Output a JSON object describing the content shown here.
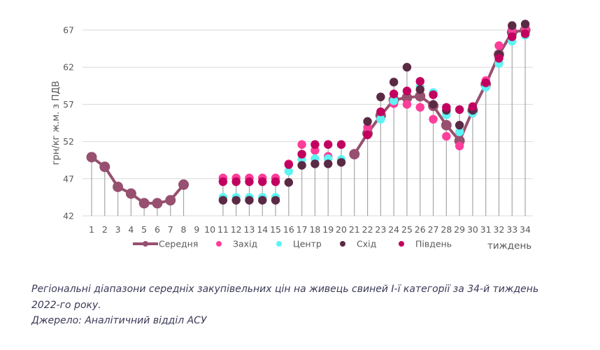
{
  "chart_data": {
    "type": "scatter",
    "title": "",
    "xlabel": "тиждень",
    "ylabel": "грн/кг ж.м. з ПДВ",
    "ylim": [
      42,
      67
    ],
    "yticks": [
      42,
      47,
      52,
      57,
      62,
      67
    ],
    "grid": true,
    "legend_position": "bottom",
    "x": [
      1,
      2,
      3,
      4,
      5,
      6,
      7,
      8,
      9,
      10,
      11,
      12,
      13,
      14,
      15,
      16,
      17,
      18,
      19,
      20,
      21,
      22,
      23,
      24,
      25,
      26,
      27,
      28,
      29,
      30,
      31,
      32,
      33,
      34
    ],
    "series": [
      {
        "name": "Захід",
        "kind": "dots",
        "color": "#FF3D9A",
        "values": [
          null,
          null,
          null,
          null,
          null,
          null,
          null,
          null,
          null,
          null,
          47.1,
          47.1,
          47.1,
          47.1,
          47.1,
          49.0,
          51.6,
          50.8,
          50.0,
          null,
          null,
          53.9,
          null,
          57.1,
          57.0,
          56.6,
          55.0,
          52.7,
          51.4,
          null,
          60.2,
          64.9,
          67.1,
          67.3
        ]
      },
      {
        "name": "Центр",
        "kind": "dots",
        "color": "#5EF4F4",
        "values": [
          null,
          null,
          null,
          null,
          null,
          null,
          null,
          null,
          null,
          null,
          44.5,
          44.5,
          44.5,
          44.5,
          44.5,
          48.0,
          49.6,
          49.7,
          49.7,
          49.6,
          null,
          null,
          55.0,
          57.5,
          null,
          59.4,
          58.6,
          55.6,
          53.3,
          55.8,
          59.3,
          62.5,
          65.5,
          66.3
        ]
      },
      {
        "name": "Схід",
        "kind": "dots",
        "color": "#5A2A45",
        "values": [
          null,
          null,
          null,
          null,
          null,
          null,
          null,
          null,
          null,
          null,
          44.1,
          44.1,
          44.1,
          44.1,
          44.1,
          46.5,
          48.8,
          49.0,
          49.0,
          49.2,
          null,
          54.7,
          58.0,
          60.0,
          62.0,
          59.0,
          57.0,
          56.2,
          54.2,
          56.2,
          null,
          63.7,
          67.6,
          67.8
        ]
      },
      {
        "name": "Південь",
        "kind": "dots",
        "color": "#C2005F",
        "values": [
          null,
          null,
          null,
          null,
          null,
          null,
          null,
          null,
          null,
          null,
          46.6,
          46.6,
          46.6,
          46.6,
          46.6,
          48.9,
          50.3,
          51.6,
          51.6,
          51.6,
          null,
          52.9,
          56.0,
          58.4,
          58.8,
          60.1,
          58.3,
          56.6,
          56.3,
          56.7,
          59.9,
          63.2,
          66.1,
          66.5
        ]
      },
      {
        "name": "Середня",
        "kind": "line",
        "color": "#97506F",
        "values": [
          49.9,
          48.6,
          45.9,
          45.0,
          43.7,
          43.7,
          44.1,
          46.2,
          null,
          null,
          null,
          null,
          null,
          null,
          null,
          null,
          null,
          null,
          null,
          null,
          50.3,
          53.1,
          55.5,
          57.6,
          57.9,
          58.1,
          56.8,
          54.2,
          52.1,
          56.2,
          59.7,
          63.7,
          66.7,
          67.0
        ]
      }
    ],
    "legend": [
      "Середня",
      "Захід",
      "Центр",
      "Схід",
      "Південь"
    ]
  },
  "caption": {
    "line1": "Регіональні діапазони середніх закупівельних цін на живець свиней І-ї категорії за 34-й тиждень",
    "line2": "2022-го року.",
    "source": "Джерело: Аналітичний відділ АСУ"
  }
}
